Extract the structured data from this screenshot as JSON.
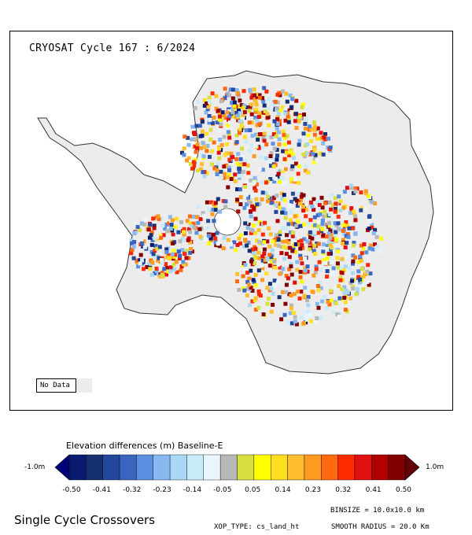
{
  "map": {
    "title": "CRYOSAT Cycle 167 : 6/2024",
    "nodata_label": "No Data",
    "nodata_color": "#ececec",
    "land_color": "#ececec",
    "scale": "-0.50 to 0.50 m, 20 colour classes"
  },
  "colorbar": {
    "title": "Elevation differences (m) Baseline-E",
    "min_label": "-1.0m",
    "max_label": "1.0m",
    "colors": [
      "#00007a",
      "#0a1a6e",
      "#16306e",
      "#23479a",
      "#3a64c0",
      "#5b8fe0",
      "#88b8f0",
      "#a8d8f5",
      "#c8ecfa",
      "#e8f6fc",
      "#b8b8b8",
      "#d8e040",
      "#ffff00",
      "#ffdf20",
      "#ffbe30",
      "#ff9a20",
      "#ff6a10",
      "#ff2a00",
      "#e01010",
      "#b00000",
      "#800000",
      "#600008"
    ],
    "ticks": [
      "-0.50",
      "-0.41",
      "-0.32",
      "-0.23",
      "-0.14",
      "-0.05",
      "0.05",
      "0.14",
      "0.23",
      "0.32",
      "0.41",
      "0.50"
    ]
  },
  "footer": {
    "title": "Single Cycle Crossovers",
    "binsize": "BINSIZE = 10.0x10.0 km",
    "xop_type": "XOP_TYPE: cs_land_ht",
    "smooth_radius": "SMOOTH RADIUS =  20.0 Km"
  }
}
